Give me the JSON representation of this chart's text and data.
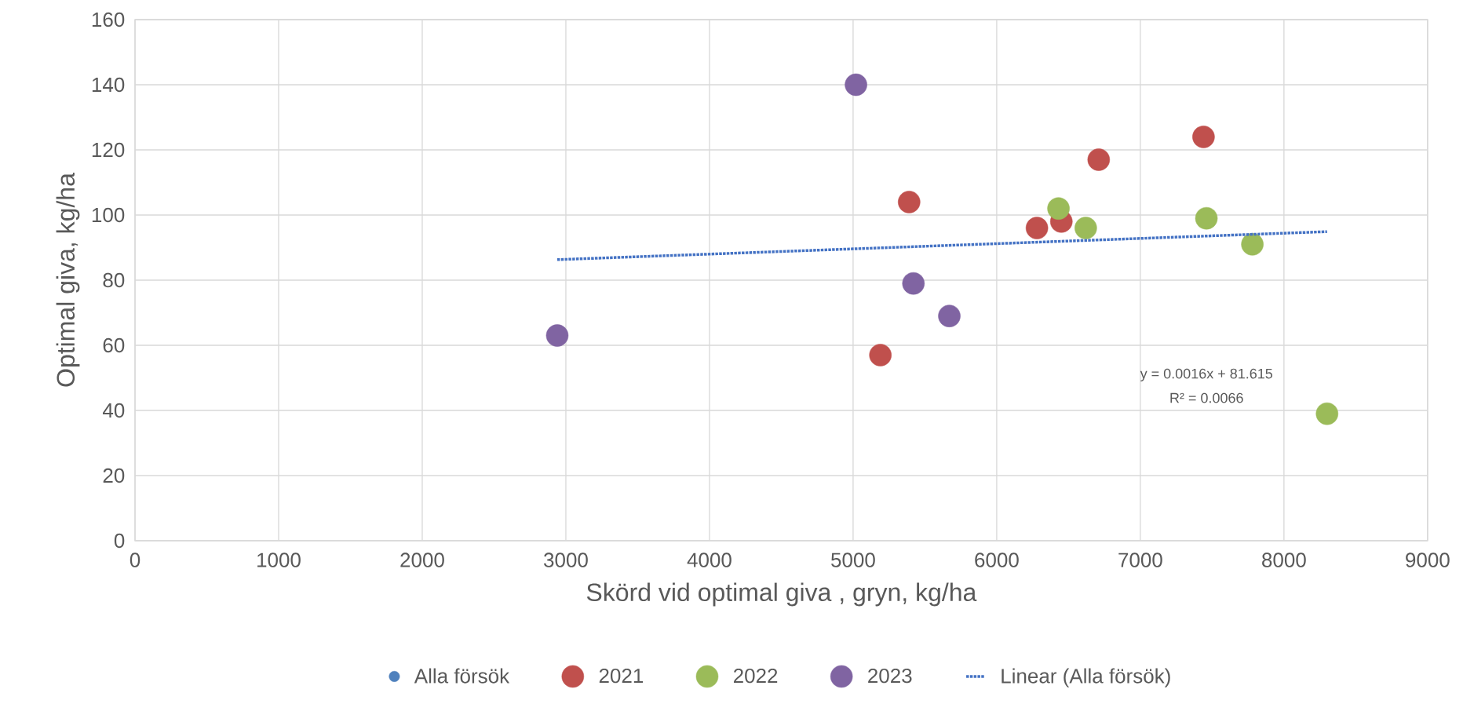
{
  "chart_data": {
    "type": "scatter",
    "xlabel": "Skörd vid optimal giva , gryn, kg/ha",
    "ylabel": "Optimal giva, kg/ha",
    "xlim": [
      0,
      9000
    ],
    "xticks": [
      0,
      1000,
      2000,
      3000,
      4000,
      5000,
      6000,
      7000,
      8000,
      9000
    ],
    "ylim": [
      0,
      160
    ],
    "yticks": [
      0,
      20,
      40,
      60,
      80,
      100,
      120,
      140,
      160
    ],
    "grid": true,
    "legend": "bottom",
    "marker": "circle",
    "annotations": [
      "y = 0.0016x + 81.615",
      "R² = 0.0066"
    ],
    "series": [
      {
        "name": "Alla försök",
        "color": "#4f81bd"
      },
      {
        "name": "2021",
        "color": "#c0504d",
        "x": [
          5190,
          5390,
          6280,
          6450,
          6710,
          7440
        ],
        "values": [
          57,
          104,
          96,
          98,
          117,
          124
        ]
      },
      {
        "name": "2022",
        "color": "#9bbb59",
        "x": [
          6430,
          6620,
          7460,
          7780,
          8300
        ],
        "values": [
          102,
          96,
          99,
          91,
          39
        ]
      },
      {
        "name": "2023",
        "color": "#8064a2",
        "x": [
          2940,
          5020,
          5420,
          5670
        ],
        "values": [
          63,
          140,
          79,
          69
        ]
      },
      {
        "name": "Linear (Alla försök)",
        "type": "line",
        "color": "#4472c4",
        "line_style": "dotted",
        "marker": "none",
        "x": [
          2940,
          8300
        ],
        "values": [
          86.3,
          94.9
        ]
      }
    ]
  }
}
